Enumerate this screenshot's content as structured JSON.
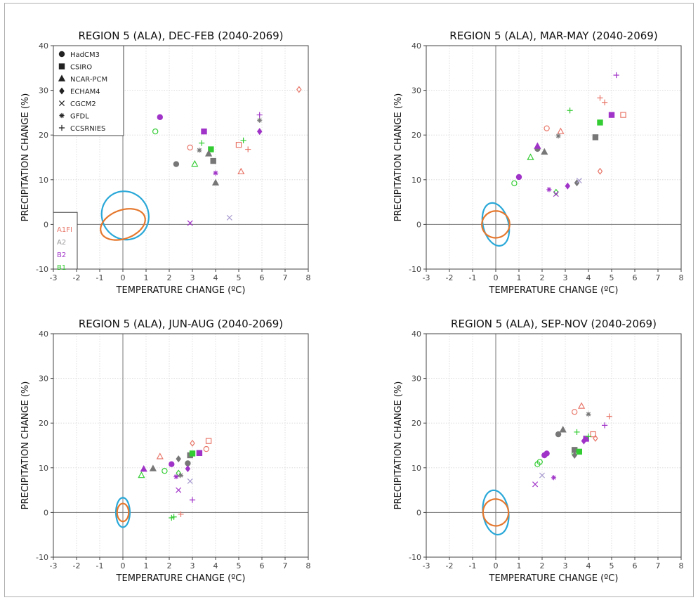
{
  "colors": {
    "A1FI": "#e8776a",
    "A2": "#9a9a9a",
    "B2": "#a033c8",
    "B1": "#33cc33",
    "HadCM3": "#a033c8",
    "CSIRO": "#777777",
    "NCAR-PCM": "#777777",
    "ECHAM4": "#777777",
    "CGCM2": "#a99bd0",
    "GFDL": "#777777",
    "CCSRNIES": "#e8776a",
    "ellipse_outer": "#2aa8d8",
    "ellipse_inner": "#e5782e"
  },
  "chart_data": [
    {
      "type": "scatter",
      "title": "REGION 5 (ALA), DEC-FEB (2040-2069)",
      "xlabel": "TEMPERATURE CHANGE (ºC)",
      "ylabel": "PRECIPITATION CHANGE (%)",
      "xlim": [
        -3,
        8
      ],
      "ylim": [
        -10,
        40
      ],
      "xticks": [
        "-3",
        "-2",
        "-1",
        "0",
        "1",
        "2",
        "3",
        "4",
        "5",
        "6",
        "7",
        "8"
      ],
      "yticks": [
        "-10",
        "0",
        "10",
        "20",
        "30",
        "40"
      ],
      "grid": true,
      "legend": {
        "placement": "top-left",
        "models": [
          {
            "label": "HadCM3",
            "marker": "circle"
          },
          {
            "label": "CSIRO",
            "marker": "square"
          },
          {
            "label": "NCAR-PCM",
            "marker": "triangle"
          },
          {
            "label": "ECHAM4",
            "marker": "diamond"
          },
          {
            "label": "CGCM2",
            "marker": "x"
          },
          {
            "label": "GFDL",
            "marker": "asterisk"
          },
          {
            "label": "CCSRNIES",
            "marker": "plus"
          }
        ],
        "scenarios": [
          {
            "label": "A1FI",
            "color": "#e8776a"
          },
          {
            "label": "A2",
            "color": "#9a9a9a"
          },
          {
            "label": "B2",
            "color": "#a033c8"
          },
          {
            "label": "B1",
            "color": "#33cc33"
          }
        ]
      },
      "ellipses": [
        {
          "cx": 0.1,
          "cy": 2.0,
          "rx": 1.0,
          "ry": 5.5,
          "angle": 32,
          "color": "#2aa8d8"
        },
        {
          "cx": 0.0,
          "cy": 0.0,
          "rx": 1.0,
          "ry": 3.2,
          "angle": 20,
          "color": "#e5782e"
        }
      ],
      "points": [
        {
          "x": 1.6,
          "y": 24.0,
          "marker": "circle",
          "fill": true,
          "color": "#a033c8"
        },
        {
          "x": 1.4,
          "y": 20.8,
          "marker": "circle",
          "fill": false,
          "color": "#33cc33"
        },
        {
          "x": 2.3,
          "y": 13.5,
          "marker": "circle",
          "fill": true,
          "color": "#777777"
        },
        {
          "x": 2.9,
          "y": 17.2,
          "marker": "circle",
          "fill": false,
          "color": "#e8776a"
        },
        {
          "x": 3.5,
          "y": 20.8,
          "marker": "square",
          "fill": true,
          "color": "#a033c8"
        },
        {
          "x": 3.8,
          "y": 16.8,
          "marker": "square",
          "fill": true,
          "color": "#33cc33"
        },
        {
          "x": 3.9,
          "y": 14.2,
          "marker": "square",
          "fill": true,
          "color": "#777777"
        },
        {
          "x": 5.0,
          "y": 17.8,
          "marker": "square",
          "fill": false,
          "color": "#e8776a"
        },
        {
          "x": 3.1,
          "y": 13.5,
          "marker": "triangle",
          "fill": false,
          "color": "#33cc33"
        },
        {
          "x": 3.7,
          "y": 15.8,
          "marker": "triangle",
          "fill": true,
          "color": "#777777"
        },
        {
          "x": 4.0,
          "y": 9.3,
          "marker": "triangle",
          "fill": true,
          "color": "#777777"
        },
        {
          "x": 5.1,
          "y": 11.8,
          "marker": "triangle",
          "fill": false,
          "color": "#e8776a"
        },
        {
          "x": 5.9,
          "y": 20.8,
          "marker": "diamond",
          "fill": true,
          "color": "#a033c8"
        },
        {
          "x": 7.6,
          "y": 30.2,
          "marker": "diamond",
          "fill": false,
          "color": "#e8776a"
        },
        {
          "x": 2.9,
          "y": 0.3,
          "marker": "x",
          "fill": false,
          "color": "#a033c8"
        },
        {
          "x": 4.6,
          "y": 1.5,
          "marker": "x",
          "fill": false,
          "color": "#a99bd0"
        },
        {
          "x": 3.3,
          "y": 16.6,
          "marker": "asterisk",
          "fill": false,
          "color": "#777777"
        },
        {
          "x": 4.0,
          "y": 11.5,
          "marker": "asterisk",
          "fill": false,
          "color": "#a033c8"
        },
        {
          "x": 5.9,
          "y": 23.3,
          "marker": "asterisk",
          "fill": false,
          "color": "#777777"
        },
        {
          "x": 3.4,
          "y": 18.2,
          "marker": "plus",
          "fill": false,
          "color": "#33cc33"
        },
        {
          "x": 5.2,
          "y": 18.8,
          "marker": "plus",
          "fill": false,
          "color": "#33cc33"
        },
        {
          "x": 5.4,
          "y": 16.8,
          "marker": "plus",
          "fill": false,
          "color": "#e8776a"
        },
        {
          "x": 5.9,
          "y": 24.5,
          "marker": "plus",
          "fill": false,
          "color": "#a033c8"
        }
      ]
    },
    {
      "type": "scatter",
      "title": "REGION 5 (ALA), MAR-MAY (2040-2069)",
      "xlabel": "TEMPERATURE CHANGE (ºC)",
      "ylabel": "PRECIPITATION CHANGE (%)",
      "xlim": [
        -3,
        8
      ],
      "ylim": [
        -10,
        40
      ],
      "xticks": [
        "-3",
        "-2",
        "-1",
        "0",
        "1",
        "2",
        "3",
        "4",
        "5",
        "6",
        "7",
        "8"
      ],
      "yticks": [
        "-10",
        "0",
        "10",
        "20",
        "30",
        "40"
      ],
      "grid": true,
      "ellipses": [
        {
          "cx": 0.0,
          "cy": 0.0,
          "rx": 0.55,
          "ry": 4.9,
          "angle": 14,
          "color": "#2aa8d8"
        },
        {
          "cx": 0.0,
          "cy": 0.0,
          "rx": 0.6,
          "ry": 3.0,
          "angle": 10,
          "color": "#e5782e"
        }
      ],
      "points": [
        {
          "x": 0.8,
          "y": 9.2,
          "marker": "circle",
          "fill": false,
          "color": "#33cc33"
        },
        {
          "x": 1.0,
          "y": 10.6,
          "marker": "circle",
          "fill": true,
          "color": "#a033c8"
        },
        {
          "x": 1.8,
          "y": 16.9,
          "marker": "circle",
          "fill": true,
          "color": "#777777"
        },
        {
          "x": 2.2,
          "y": 21.5,
          "marker": "circle",
          "fill": false,
          "color": "#e8776a"
        },
        {
          "x": 4.3,
          "y": 19.5,
          "marker": "square",
          "fill": true,
          "color": "#777777"
        },
        {
          "x": 4.5,
          "y": 22.8,
          "marker": "square",
          "fill": true,
          "color": "#33cc33"
        },
        {
          "x": 5.0,
          "y": 24.5,
          "marker": "square",
          "fill": true,
          "color": "#a033c8"
        },
        {
          "x": 5.5,
          "y": 24.5,
          "marker": "square",
          "fill": false,
          "color": "#e8776a"
        },
        {
          "x": 1.8,
          "y": 17.5,
          "marker": "triangle",
          "fill": true,
          "color": "#a033c8"
        },
        {
          "x": 2.1,
          "y": 16.2,
          "marker": "triangle",
          "fill": true,
          "color": "#777777"
        },
        {
          "x": 2.8,
          "y": 20.8,
          "marker": "triangle",
          "fill": false,
          "color": "#e8776a"
        },
        {
          "x": 1.5,
          "y": 15.0,
          "marker": "triangle",
          "fill": false,
          "color": "#33cc33"
        },
        {
          "x": 2.6,
          "y": 7.2,
          "marker": "diamond",
          "fill": false,
          "color": "#33cc33"
        },
        {
          "x": 3.1,
          "y": 8.6,
          "marker": "diamond",
          "fill": true,
          "color": "#a033c8"
        },
        {
          "x": 3.5,
          "y": 9.3,
          "marker": "diamond",
          "fill": true,
          "color": "#777777"
        },
        {
          "x": 4.5,
          "y": 11.9,
          "marker": "diamond",
          "fill": false,
          "color": "#e8776a"
        },
        {
          "x": 2.6,
          "y": 6.8,
          "marker": "x",
          "fill": false,
          "color": "#a033c8"
        },
        {
          "x": 3.6,
          "y": 9.8,
          "marker": "x",
          "fill": false,
          "color": "#a99bd0"
        },
        {
          "x": 2.3,
          "y": 7.8,
          "marker": "asterisk",
          "fill": false,
          "color": "#a033c8"
        },
        {
          "x": 2.7,
          "y": 19.8,
          "marker": "asterisk",
          "fill": false,
          "color": "#777777"
        },
        {
          "x": 3.2,
          "y": 25.5,
          "marker": "plus",
          "fill": false,
          "color": "#33cc33"
        },
        {
          "x": 4.5,
          "y": 28.3,
          "marker": "plus",
          "fill": false,
          "color": "#e8776a"
        },
        {
          "x": 4.7,
          "y": 27.3,
          "marker": "plus",
          "fill": false,
          "color": "#e8776a"
        },
        {
          "x": 5.2,
          "y": 33.4,
          "marker": "plus",
          "fill": false,
          "color": "#a033c8"
        }
      ]
    },
    {
      "type": "scatter",
      "title": "REGION 5 (ALA), JUN-AUG (2040-2069)",
      "xlabel": "TEMPERATURE CHANGE (ºC)",
      "ylabel": "PRECIPITATION CHANGE (%)",
      "xlim": [
        -3,
        8
      ],
      "ylim": [
        -10,
        40
      ],
      "xticks": [
        "-3",
        "-2",
        "-1",
        "0",
        "1",
        "2",
        "3",
        "4",
        "5",
        "6",
        "7",
        "8"
      ],
      "yticks": [
        "-10",
        "0",
        "10",
        "20",
        "30",
        "40"
      ],
      "grid": true,
      "ellipses": [
        {
          "cx": 0.0,
          "cy": 0.0,
          "rx": 0.3,
          "ry": 3.3,
          "angle": 0,
          "color": "#2aa8d8"
        },
        {
          "cx": 0.0,
          "cy": 0.0,
          "rx": 0.25,
          "ry": 2.0,
          "angle": 0,
          "color": "#e5782e"
        }
      ],
      "points": [
        {
          "x": 1.8,
          "y": 9.3,
          "marker": "circle",
          "fill": false,
          "color": "#33cc33"
        },
        {
          "x": 2.1,
          "y": 10.8,
          "marker": "circle",
          "fill": true,
          "color": "#a033c8"
        },
        {
          "x": 2.8,
          "y": 11.0,
          "marker": "circle",
          "fill": true,
          "color": "#777777"
        },
        {
          "x": 3.6,
          "y": 14.2,
          "marker": "circle",
          "fill": false,
          "color": "#e8776a"
        },
        {
          "x": 2.9,
          "y": 12.8,
          "marker": "square",
          "fill": true,
          "color": "#777777"
        },
        {
          "x": 3.0,
          "y": 13.2,
          "marker": "square",
          "fill": true,
          "color": "#33cc33"
        },
        {
          "x": 3.3,
          "y": 13.3,
          "marker": "square",
          "fill": true,
          "color": "#a033c8"
        },
        {
          "x": 3.7,
          "y": 16.0,
          "marker": "square",
          "fill": false,
          "color": "#e8776a"
        },
        {
          "x": 0.9,
          "y": 9.7,
          "marker": "triangle",
          "fill": true,
          "color": "#a033c8"
        },
        {
          "x": 1.3,
          "y": 9.8,
          "marker": "triangle",
          "fill": true,
          "color": "#777777"
        },
        {
          "x": 0.8,
          "y": 8.3,
          "marker": "triangle",
          "fill": false,
          "color": "#33cc33"
        },
        {
          "x": 1.6,
          "y": 12.5,
          "marker": "triangle",
          "fill": false,
          "color": "#e8776a"
        },
        {
          "x": 2.4,
          "y": 8.8,
          "marker": "diamond",
          "fill": false,
          "color": "#33cc33"
        },
        {
          "x": 2.8,
          "y": 9.8,
          "marker": "diamond",
          "fill": true,
          "color": "#a033c8"
        },
        {
          "x": 3.0,
          "y": 15.5,
          "marker": "diamond",
          "fill": false,
          "color": "#e8776a"
        },
        {
          "x": 2.4,
          "y": 12.0,
          "marker": "diamond",
          "fill": true,
          "color": "#777777"
        },
        {
          "x": 2.4,
          "y": 5.0,
          "marker": "x",
          "fill": false,
          "color": "#a033c8"
        },
        {
          "x": 2.9,
          "y": 7.0,
          "marker": "x",
          "fill": false,
          "color": "#a99bd0"
        },
        {
          "x": 2.3,
          "y": 8.0,
          "marker": "asterisk",
          "fill": false,
          "color": "#a033c8"
        },
        {
          "x": 2.5,
          "y": 8.3,
          "marker": "asterisk",
          "fill": false,
          "color": "#777777"
        },
        {
          "x": 2.1,
          "y": -1.2,
          "marker": "plus",
          "fill": false,
          "color": "#33cc33"
        },
        {
          "x": 2.2,
          "y": -1.0,
          "marker": "plus",
          "fill": false,
          "color": "#33cc33"
        },
        {
          "x": 2.5,
          "y": -0.4,
          "marker": "plus",
          "fill": false,
          "color": "#e8776a"
        },
        {
          "x": 3.0,
          "y": 2.8,
          "marker": "plus",
          "fill": false,
          "color": "#a033c8"
        }
      ]
    },
    {
      "type": "scatter",
      "title": "REGION 5 (ALA), SEP-NOV (2040-2069)",
      "xlabel": "TEMPERATURE CHANGE (ºC)",
      "ylabel": "PRECIPITATION CHANGE (%)",
      "xlim": [
        -3,
        8
      ],
      "ylim": [
        -10,
        40
      ],
      "xticks": [
        "-3",
        "-2",
        "-1",
        "0",
        "1",
        "2",
        "3",
        "4",
        "5",
        "6",
        "7",
        "8"
      ],
      "yticks": [
        "-10",
        "0",
        "10",
        "20",
        "30",
        "40"
      ],
      "grid": true,
      "ellipses": [
        {
          "cx": 0.0,
          "cy": 0.0,
          "rx": 0.55,
          "ry": 5.0,
          "angle": 8,
          "color": "#2aa8d8"
        },
        {
          "cx": 0.0,
          "cy": 0.0,
          "rx": 0.55,
          "ry": 3.0,
          "angle": 8,
          "color": "#e5782e"
        }
      ],
      "points": [
        {
          "x": 1.8,
          "y": 10.8,
          "marker": "circle",
          "fill": false,
          "color": "#33cc33"
        },
        {
          "x": 1.9,
          "y": 11.3,
          "marker": "circle",
          "fill": false,
          "color": "#33cc33"
        },
        {
          "x": 2.1,
          "y": 12.8,
          "marker": "circle",
          "fill": true,
          "color": "#a033c8"
        },
        {
          "x": 2.2,
          "y": 13.2,
          "marker": "circle",
          "fill": true,
          "color": "#a033c8"
        },
        {
          "x": 2.7,
          "y": 17.5,
          "marker": "circle",
          "fill": true,
          "color": "#777777"
        },
        {
          "x": 3.4,
          "y": 22.5,
          "marker": "circle",
          "fill": false,
          "color": "#e8776a"
        },
        {
          "x": 3.4,
          "y": 13.2,
          "marker": "circle",
          "fill": false,
          "color": "#33cc33"
        },
        {
          "x": 3.4,
          "y": 14.0,
          "marker": "square",
          "fill": true,
          "color": "#777777"
        },
        {
          "x": 3.6,
          "y": 13.6,
          "marker": "square",
          "fill": true,
          "color": "#33cc33"
        },
        {
          "x": 3.9,
          "y": 16.5,
          "marker": "square",
          "fill": true,
          "color": "#a033c8"
        },
        {
          "x": 4.2,
          "y": 17.5,
          "marker": "square",
          "fill": false,
          "color": "#e8776a"
        },
        {
          "x": 2.9,
          "y": 18.5,
          "marker": "triangle",
          "fill": true,
          "color": "#777777"
        },
        {
          "x": 3.7,
          "y": 23.8,
          "marker": "triangle",
          "fill": false,
          "color": "#e8776a"
        },
        {
          "x": 3.4,
          "y": 12.8,
          "marker": "diamond",
          "fill": true,
          "color": "#777777"
        },
        {
          "x": 3.8,
          "y": 16.0,
          "marker": "diamond",
          "fill": true,
          "color": "#a033c8"
        },
        {
          "x": 4.3,
          "y": 16.6,
          "marker": "diamond",
          "fill": false,
          "color": "#e8776a"
        },
        {
          "x": 1.7,
          "y": 6.3,
          "marker": "x",
          "fill": false,
          "color": "#a033c8"
        },
        {
          "x": 2.0,
          "y": 8.3,
          "marker": "x",
          "fill": false,
          "color": "#a99bd0"
        },
        {
          "x": 2.5,
          "y": 7.8,
          "marker": "asterisk",
          "fill": false,
          "color": "#a033c8"
        },
        {
          "x": 4.0,
          "y": 22.0,
          "marker": "asterisk",
          "fill": false,
          "color": "#777777"
        },
        {
          "x": 3.5,
          "y": 18.0,
          "marker": "plus",
          "fill": false,
          "color": "#33cc33"
        },
        {
          "x": 4.0,
          "y": 17.0,
          "marker": "plus",
          "fill": false,
          "color": "#33cc33"
        },
        {
          "x": 4.7,
          "y": 19.5,
          "marker": "plus",
          "fill": false,
          "color": "#a033c8"
        },
        {
          "x": 4.9,
          "y": 21.5,
          "marker": "plus",
          "fill": false,
          "color": "#e8776a"
        }
      ]
    }
  ]
}
